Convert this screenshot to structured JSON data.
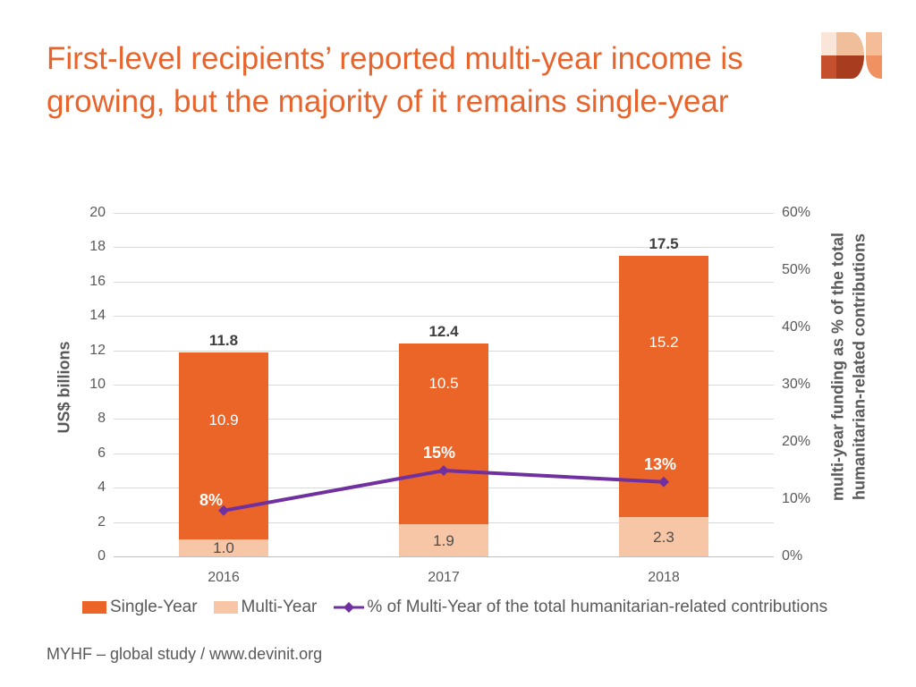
{
  "slide": {
    "title": "First-level recipients’ reported multi-year income is growing, but the majority of it remains single-year",
    "title_color": "#E7642D",
    "footer": "MYHF – global study / www.devinit.org"
  },
  "logo": {
    "name": "devinit-logo",
    "colors": {
      "cream": "#FAE6D8",
      "tan": "#F1BE9C",
      "rust": "#C4502E",
      "brick": "#A83C1F",
      "salmon": "#F5BD97",
      "orange": "#EF9160"
    }
  },
  "chart_data": {
    "type": "bar",
    "subtype": "stacked-column-with-line",
    "categories": [
      "2016",
      "2017",
      "2018"
    ],
    "series": [
      {
        "name": "Single-Year",
        "type": "bar",
        "axis": "left",
        "color": "#EC6528",
        "values": [
          10.9,
          10.5,
          15.2
        ],
        "labels": [
          "10.9",
          "10.5",
          "15.2"
        ]
      },
      {
        "name": "Multi-Year",
        "type": "bar",
        "axis": "left",
        "color": "#F7C6A6",
        "values": [
          1.0,
          1.9,
          2.3
        ],
        "labels": [
          "1.0",
          "1.9",
          "2.3"
        ]
      },
      {
        "name": "% of Multi-Year of the total humanitarian-related contributions",
        "type": "line",
        "axis": "right",
        "color": "#7030A0",
        "values": [
          8,
          15,
          13
        ],
        "labels": [
          "8%",
          "15%",
          "13%"
        ]
      }
    ],
    "totals": {
      "values": [
        11.8,
        12.4,
        17.5
      ],
      "labels": [
        "11.8",
        "12.4",
        "17.5"
      ]
    },
    "left_axis": {
      "title": "US$ billions",
      "min": 0,
      "max": 20,
      "step": 2,
      "ticks": [
        "0",
        "2",
        "4",
        "6",
        "8",
        "10",
        "12",
        "14",
        "16",
        "18",
        "20"
      ]
    },
    "right_axis": {
      "title_line1": "multi-year funding as % of the total",
      "title_line2": "humanitarian-related contributions",
      "min": 0,
      "max": 60,
      "step": 10,
      "ticks": [
        "0%",
        "10%",
        "20%",
        "30%",
        "40%",
        "50%",
        "60%"
      ]
    },
    "legend": [
      "Single-Year",
      "Multi-Year",
      "% of Multi-Year of the total humanitarian-related contributions"
    ],
    "grid": true,
    "legend_position": "bottom"
  }
}
